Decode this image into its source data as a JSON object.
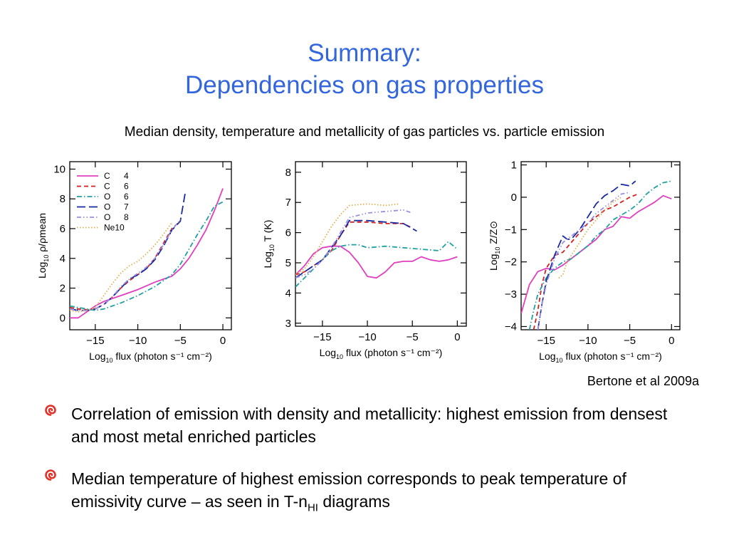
{
  "slide": {
    "title_line1": "Summary:",
    "title_line2": "Dependencies on gas properties",
    "subtitle": "Median density, temperature and metallicity of gas particles vs. particle emission",
    "credit": "Bertone et al 2009a",
    "bullets": [
      {
        "text": "Correlation of emission with density and metallicity: highest emission from densest and most metal enriched particles"
      },
      {
        "text_before": "Median temperature of highest emission corresponds to peak temperature of emissivity curve – as seen in T-n",
        "text_sub": "HI",
        "text_after": " diagrams"
      }
    ],
    "colors": {
      "title": "#3366dd",
      "bullet_icon": "#e0322a"
    }
  },
  "legend": [
    {
      "label": "C 4",
      "color": "#e040c0",
      "dash": "solid"
    },
    {
      "label": "C 6",
      "color": "#d22020",
      "dash": "dash"
    },
    {
      "label": "O 6",
      "color": "#22a0a0",
      "dash": "dashdot"
    },
    {
      "label": "O 7",
      "color": "#1a2aa0",
      "dash": "longdash"
    },
    {
      "label": "O 8",
      "color": "#9a90e0",
      "dash": "dashdotdot"
    },
    {
      "label": "Ne10",
      "color": "#e0b050",
      "dash": "dot"
    }
  ],
  "chart_data": [
    {
      "type": "line",
      "xlabel": "Log10 flux (photon s⁻¹ cm⁻²)",
      "ylabel": "Log10 ρ/ρmean",
      "xlim": [
        -18,
        1
      ],
      "ylim": [
        -0.8,
        10.5
      ],
      "xticks": [
        -15,
        -10,
        -5,
        0
      ],
      "yticks": [
        0,
        2,
        4,
        6,
        8,
        10
      ],
      "series": [
        {
          "name": "C 4",
          "x": [
            -18,
            -17,
            -16,
            -15,
            -14,
            -12,
            -10,
            -8,
            -7,
            -6,
            -5,
            -4,
            -3,
            -2,
            -1,
            0
          ],
          "y": [
            0,
            0,
            0.4,
            0.8,
            1.1,
            1.5,
            1.9,
            2.4,
            2.6,
            2.8,
            3.3,
            4.0,
            4.9,
            5.9,
            7.2,
            8.7
          ]
        },
        {
          "name": "C 6",
          "x": [
            -18,
            -17,
            -16,
            -15,
            -14,
            -13,
            -12,
            -11,
            -10,
            -9,
            -8,
            -7,
            -6,
            -5
          ],
          "y": [
            0.7,
            0.6,
            0.55,
            0.6,
            0.9,
            1.4,
            2.0,
            2.5,
            2.9,
            3.3,
            4.0,
            5.0,
            6.0,
            6.5
          ]
        },
        {
          "name": "O 6",
          "x": [
            -18,
            -17,
            -16,
            -15,
            -14,
            -12,
            -10,
            -8,
            -6,
            -5,
            -4,
            -3,
            -2,
            -1,
            0
          ],
          "y": [
            0.8,
            0.7,
            0.6,
            0.5,
            0.6,
            1.0,
            1.5,
            2.1,
            2.9,
            3.6,
            4.6,
            5.6,
            6.5,
            7.5,
            7.8
          ]
        },
        {
          "name": "O 7",
          "x": [
            -18,
            -17,
            -16,
            -15,
            -14,
            -13,
            -12,
            -11,
            -10,
            -9,
            -8,
            -7,
            -6,
            -5,
            -4.4
          ],
          "y": [
            0.6,
            0.5,
            0.5,
            0.6,
            0.9,
            1.4,
            2.0,
            2.6,
            2.9,
            3.3,
            3.9,
            4.8,
            5.9,
            6.5,
            8.5
          ]
        },
        {
          "name": "O 8",
          "x": [
            -18,
            -17,
            -16,
            -15,
            -14,
            -13,
            -12,
            -11,
            -10,
            -9,
            -8,
            -7,
            -6,
            -5
          ],
          "y": [
            0.6,
            0.5,
            0.5,
            0.6,
            0.9,
            1.4,
            2.1,
            2.6,
            3.0,
            3.4,
            4.0,
            4.9,
            5.9,
            6.6
          ]
        },
        {
          "name": "Ne10",
          "x": [
            -18,
            -17,
            -16,
            -15,
            -14,
            -13,
            -12,
            -11,
            -10,
            -9,
            -8,
            -7,
            -6
          ],
          "y": [
            0.5,
            0.4,
            0.5,
            0.7,
            1.5,
            2.3,
            3.0,
            3.5,
            3.8,
            4.3,
            4.9,
            5.6,
            6.4
          ]
        }
      ]
    },
    {
      "type": "line",
      "xlabel": "Log10 flux (photon s⁻¹ cm⁻²)",
      "ylabel": "Log10 T (K)",
      "xlim": [
        -18,
        1
      ],
      "ylim": [
        2.9,
        8.35
      ],
      "xticks": [
        -15,
        -10,
        -5,
        0
      ],
      "yticks": [
        3,
        4,
        5,
        6,
        7,
        8
      ],
      "series": [
        {
          "name": "C 4",
          "x": [
            -18,
            -17,
            -16,
            -15,
            -14,
            -13,
            -12,
            -11,
            -10,
            -9,
            -8,
            -7,
            -6,
            -5,
            -4,
            -3,
            -2,
            -1,
            0
          ],
          "y": [
            4.6,
            4.9,
            5.3,
            5.5,
            5.55,
            5.55,
            5.35,
            5.0,
            4.55,
            4.5,
            4.7,
            5.0,
            5.05,
            5.05,
            5.2,
            5.1,
            5.05,
            5.1,
            5.2
          ]
        },
        {
          "name": "C 6",
          "x": [
            -18,
            -17,
            -16,
            -15,
            -14,
            -13,
            -12,
            -10,
            -8,
            -6,
            -5
          ],
          "y": [
            4.6,
            4.7,
            4.9,
            5.1,
            5.4,
            5.9,
            6.35,
            6.35,
            6.3,
            6.3,
            6.15
          ]
        },
        {
          "name": "O 6",
          "x": [
            -18,
            -17,
            -16,
            -15,
            -14,
            -13,
            -12,
            -11,
            -10,
            -8,
            -6,
            -4,
            -2,
            -1,
            0
          ],
          "y": [
            4.2,
            4.5,
            4.8,
            5.1,
            5.4,
            5.55,
            5.6,
            5.6,
            5.5,
            5.55,
            5.5,
            5.45,
            5.4,
            5.7,
            5.45
          ]
        },
        {
          "name": "O 7",
          "x": [
            -18,
            -17,
            -16,
            -15,
            -14,
            -13,
            -12,
            -10,
            -8,
            -6,
            -4.5
          ],
          "y": [
            4.5,
            4.7,
            4.9,
            5.1,
            5.5,
            5.9,
            6.4,
            6.4,
            6.35,
            6.3,
            6.05
          ]
        },
        {
          "name": "O 8",
          "x": [
            -18,
            -17,
            -16,
            -15,
            -14,
            -13,
            -12,
            -10,
            -8,
            -6,
            -5
          ],
          "y": [
            4.5,
            4.6,
            4.8,
            5.1,
            5.5,
            6.0,
            6.5,
            6.65,
            6.7,
            6.75,
            6.65
          ]
        },
        {
          "name": "Ne10",
          "x": [
            -18,
            -17,
            -16,
            -15,
            -14,
            -13,
            -12,
            -10,
            -8,
            -6.5
          ],
          "y": [
            4.6,
            4.8,
            5.2,
            5.7,
            6.2,
            6.6,
            6.9,
            6.95,
            6.9,
            6.95
          ]
        }
      ]
    },
    {
      "type": "line",
      "xlabel": "Log10 flux (photon s⁻¹ cm⁻²)",
      "ylabel": "Log10 Z/Z⊙",
      "xlim": [
        -18,
        1
      ],
      "ylim": [
        -4.1,
        1.1
      ],
      "xticks": [
        -15,
        -10,
        -5,
        0
      ],
      "yticks": [
        -4,
        -3,
        -2,
        -1,
        0,
        1
      ],
      "series": [
        {
          "name": "C 4",
          "x": [
            -18,
            -17,
            -16,
            -15,
            -14,
            -13,
            -12,
            -11,
            -10,
            -9,
            -8,
            -7,
            -6,
            -5,
            -4,
            -3,
            -2,
            -1,
            0
          ],
          "y": [
            -3.6,
            -2.7,
            -2.3,
            -2.2,
            -2.25,
            -2.1,
            -1.9,
            -1.7,
            -1.5,
            -1.3,
            -1.0,
            -0.9,
            -0.6,
            -0.65,
            -0.45,
            -0.3,
            -0.15,
            0.05,
            -0.05
          ]
        },
        {
          "name": "C 6",
          "x": [
            -16.5,
            -16,
            -15.5,
            -15,
            -14.5,
            -14,
            -13,
            -12,
            -11,
            -10,
            -9,
            -8,
            -7,
            -6,
            -5,
            -4
          ],
          "y": [
            -4.1,
            -3.5,
            -2.7,
            -2.2,
            -2.0,
            -1.8,
            -1.7,
            -1.4,
            -1.1,
            -0.8,
            -0.6,
            -0.4,
            -0.3,
            -0.15,
            0,
            0.1
          ]
        },
        {
          "name": "O 6",
          "x": [
            -17,
            -16.5,
            -16,
            -15,
            -14,
            -13,
            -12,
            -11,
            -10,
            -9,
            -8,
            -7,
            -6,
            -5,
            -4,
            -3,
            -2,
            -1,
            0
          ],
          "y": [
            -4.1,
            -3.5,
            -3.0,
            -2.5,
            -2.2,
            -2.0,
            -1.9,
            -1.7,
            -1.5,
            -1.2,
            -1.0,
            -0.7,
            -0.55,
            -0.4,
            -0.2,
            0.1,
            0.3,
            0.45,
            0.5
          ]
        },
        {
          "name": "O 7",
          "x": [
            -16,
            -15.5,
            -15,
            -14,
            -13,
            -12.5,
            -12,
            -11,
            -10,
            -9,
            -8,
            -7,
            -6,
            -5,
            -4.3
          ],
          "y": [
            -4.1,
            -3.3,
            -2.6,
            -1.8,
            -1.2,
            -1.3,
            -1.3,
            -1.0,
            -0.6,
            -0.2,
            0.05,
            0.2,
            0.4,
            0.35,
            0.5
          ]
        },
        {
          "name": "O 8",
          "x": [
            -16,
            -15.5,
            -15,
            -14,
            -13,
            -12,
            -11,
            -10,
            -9,
            -8,
            -7,
            -6,
            -5
          ],
          "y": [
            -4.1,
            -3.3,
            -2.7,
            -1.9,
            -1.4,
            -1.2,
            -1.0,
            -0.8,
            -0.5,
            -0.3,
            -0.1,
            0.1,
            0.15
          ]
        },
        {
          "name": "Ne10",
          "x": [
            -13.5,
            -13,
            -12.5,
            -12,
            -11,
            -10,
            -9,
            -8,
            -7,
            -6
          ],
          "y": [
            -2.5,
            -2.4,
            -2.0,
            -1.8,
            -1.4,
            -1.0,
            -0.7,
            -0.4,
            -0.15,
            0
          ]
        }
      ]
    }
  ]
}
